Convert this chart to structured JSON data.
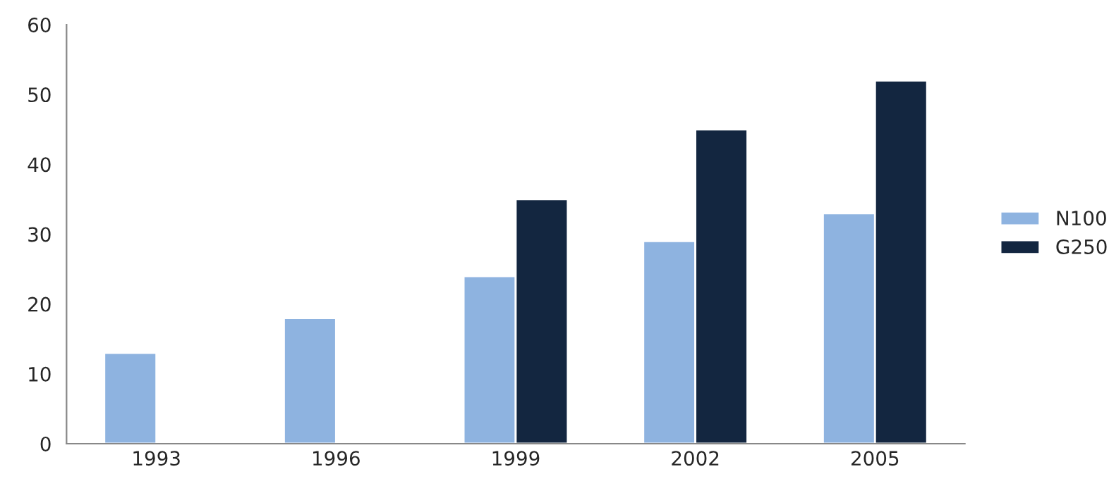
{
  "chart_data": {
    "type": "bar",
    "categories": [
      "1993",
      "1996",
      "1999",
      "2002",
      "2005"
    ],
    "series": [
      {
        "name": "N100",
        "color": "#8eb3e0",
        "values": [
          13,
          18,
          24,
          29,
          33
        ]
      },
      {
        "name": "G250",
        "color": "#132640",
        "values": [
          null,
          null,
          35,
          45,
          52
        ]
      }
    ],
    "ylim": [
      0,
      60
    ],
    "yticks": [
      0,
      10,
      20,
      30,
      40,
      50,
      60
    ],
    "grid": false,
    "legend": "right"
  }
}
